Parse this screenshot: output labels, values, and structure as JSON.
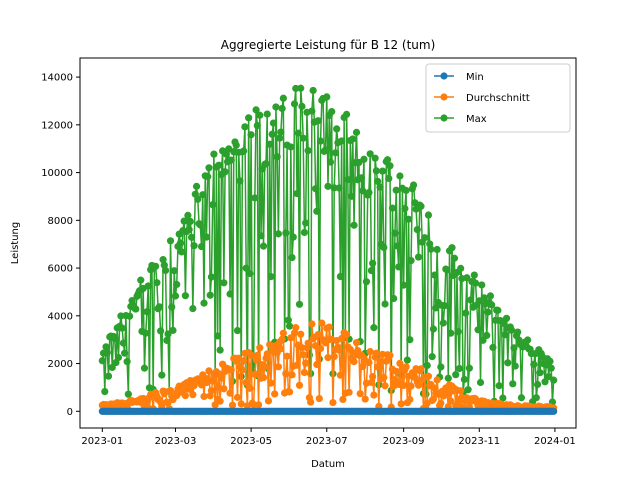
{
  "chart_data": {
    "type": "line",
    "title": "Aggregierte Leistung für B 12 (tum)",
    "xlabel": "Datum",
    "ylabel": "Leistung",
    "x_range": [
      "2022-12-14",
      "2024-01-18"
    ],
    "ylim": [
      -700,
      14800
    ],
    "x_ticks": [
      "2023-01",
      "2023-03",
      "2023-05",
      "2023-07",
      "2023-09",
      "2023-11",
      "2024-01"
    ],
    "y_ticks": [
      0,
      2000,
      4000,
      6000,
      8000,
      10000,
      12000,
      14000
    ],
    "y_tick_labels": [
      "0",
      "2000",
      "4000",
      "6000",
      "8000",
      "10000",
      "12000",
      "14000"
    ],
    "grid": false,
    "legend_position": "upper right",
    "x_start": "2023-01-01",
    "x_end": "2023-12-31",
    "series": [
      {
        "name": "Min",
        "color": "#1f77b4",
        "marker": "circle",
        "values": "0 for every day from 2023-01-01 to 2023-12-31"
      },
      {
        "name": "Durchschnitt",
        "color": "#ff7f0e",
        "marker": "circle",
        "envelope_samples": [
          [
            "2023-01-01",
            300
          ],
          [
            "2023-02-01",
            550
          ],
          [
            "2023-03-01",
            1100
          ],
          [
            "2023-04-01",
            1800
          ],
          [
            "2023-05-01",
            2600
          ],
          [
            "2023-06-01",
            3400
          ],
          [
            "2023-06-20",
            3800
          ],
          [
            "2023-07-10",
            3500
          ],
          [
            "2023-08-01",
            2600
          ],
          [
            "2023-09-01",
            2200
          ],
          [
            "2023-10-01",
            1300
          ],
          [
            "2023-11-01",
            450
          ],
          [
            "2023-12-01",
            250
          ],
          [
            "2023-12-31",
            200
          ]
        ]
      },
      {
        "name": "Max",
        "color": "#2ca02c",
        "marker": "circle",
        "envelope_samples": [
          [
            "2023-01-01",
            2500
          ],
          [
            "2023-01-15",
            4200
          ],
          [
            "2023-02-01",
            5500
          ],
          [
            "2023-03-01",
            8000
          ],
          [
            "2023-04-01",
            11000
          ],
          [
            "2023-05-01",
            12800
          ],
          [
            "2023-06-01",
            13300
          ],
          [
            "2023-06-10",
            14100
          ],
          [
            "2023-07-01",
            13500
          ],
          [
            "2023-08-01",
            11500
          ],
          [
            "2023-09-01",
            10500
          ],
          [
            "2023-10-01",
            7500
          ],
          [
            "2023-11-01",
            5500
          ],
          [
            "2023-12-01",
            3500
          ],
          [
            "2023-12-31",
            2000
          ]
        ]
      }
    ]
  }
}
